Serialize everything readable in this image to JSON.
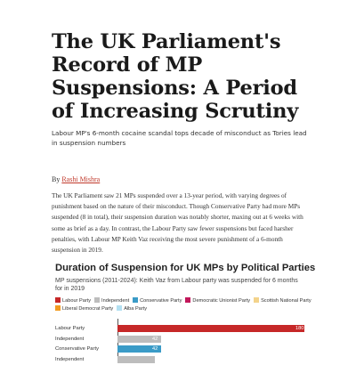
{
  "article": {
    "headline": "The UK Parliament's Record of MP Suspensions: A Period of Increasing Scrutiny",
    "subtitle": "Labour MP's 6-month cocaine scandal tops decade of misconduct as Tories lead in suspension numbers",
    "byline_prefix": "By",
    "author": "Rashi Mishra",
    "body": "The UK Parliament saw 21 MPs suspended over a 13-year period, with varying degrees of punishment based on the nature of their misconduct. Though Conservative Party had more MPs suspended (8 in total), their suspension duration was notably shorter, maxing out at 6 weeks with some as brief as a day. In contrast, the Labour Party saw fewer suspensions but faced harsher penalties, with Labour MP Keith Vaz receiving the most severe punishment of a 6-month suspension in 2019."
  },
  "chart_data": {
    "type": "bar",
    "title": "Duration of Suspension for UK MPs by Political Parties",
    "subtitle": "MP suspensions (2011-2024): Keith Vaz from Labour party was suspended for 6 months for in 2019",
    "legend": [
      {
        "name": "Labour Party",
        "color": "#c62828"
      },
      {
        "name": "Independent",
        "color": "#bdbdbd"
      },
      {
        "name": "Conservative Party",
        "color": "#3a9bc7"
      },
      {
        "name": "Democratic Unionist Party",
        "color": "#c2185b"
      },
      {
        "name": "Scottish National Party",
        "color": "#f3d38b"
      },
      {
        "name": "Liberal Democrat Party",
        "color": "#f29b21"
      },
      {
        "name": "Alba Party",
        "color": "#b3e0f2"
      }
    ],
    "categories": [
      "Labour Party",
      "Independent",
      "Conservative Party",
      "Independent"
    ],
    "values": [
      180,
      42,
      42,
      36
    ],
    "value_labels": [
      "180",
      "42",
      "42",
      ""
    ],
    "colors": [
      "#c62828",
      "#bdbdbd",
      "#3a9bc7",
      "#bdbdbd"
    ],
    "xlim": [
      0,
      180
    ],
    "legend_position": "top"
  }
}
